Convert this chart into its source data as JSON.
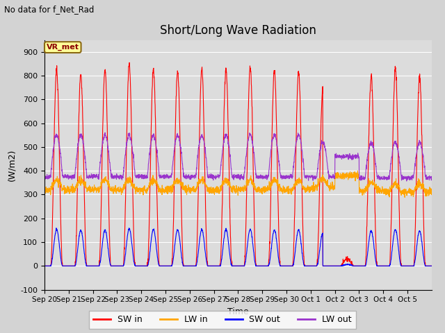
{
  "title": "Short/Long Wave Radiation",
  "xlabel": "Time",
  "ylabel": "(W/m2)",
  "ylim": [
    -100,
    950
  ],
  "yticks": [
    -100,
    0,
    100,
    200,
    300,
    400,
    500,
    600,
    700,
    800,
    900
  ],
  "background_color": "#dcdcdc",
  "fig_facecolor": "#d3d3d3",
  "annotation_text": "No data for f_Net_Rad",
  "station_label": "VR_met",
  "legend_colors": [
    "#ff0000",
    "#ffa500",
    "#0000ff",
    "#9933cc"
  ],
  "legend_labels": [
    "SW in",
    "LW in",
    "SW out",
    "LW out"
  ],
  "num_days": 16,
  "xtick_labels": [
    "Sep 20",
    "Sep 21",
    "Sep 22",
    "Sep 23",
    "Sep 24",
    "Sep 25",
    "Sep 26",
    "Sep 27",
    "Sep 28",
    "Sep 29",
    "Sep 30",
    "Oct 1",
    "Oct 2",
    "Oct 3",
    "Oct 4",
    "Oct 5"
  ],
  "sw_peaks": [
    825,
    807,
    825,
    845,
    825,
    820,
    825,
    825,
    835,
    820,
    815,
    737,
    0,
    800,
    830,
    795
  ],
  "sw_out_ratio": 0.185,
  "lw_in_base": 320,
  "lw_out_night": 375,
  "lw_out_day_peak": 550
}
